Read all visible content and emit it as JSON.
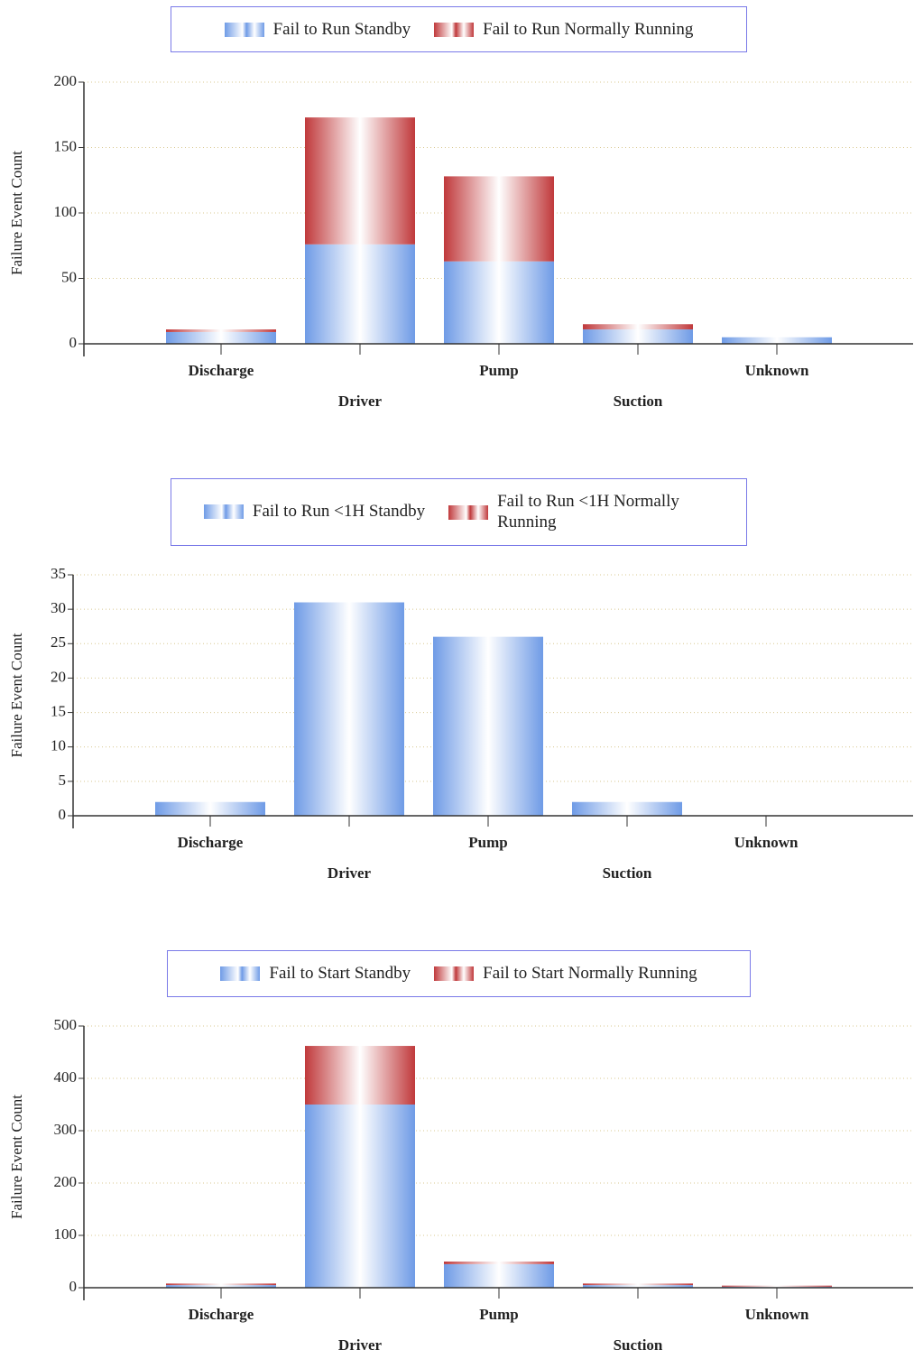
{
  "chart_data": [
    {
      "type": "bar",
      "stacked": true,
      "grid": true,
      "legend": "top",
      "y_label": "Failure Event Count",
      "categories": [
        "Discharge",
        "Driver",
        "Pump",
        "Suction",
        "Unknown"
      ],
      "series": [
        {
          "name": "Fail to Run Standby",
          "color": "#6f9be6",
          "values": [
            9,
            76,
            63,
            11,
            5
          ]
        },
        {
          "name": "Fail to Run Normally Running",
          "color": "#c0393b",
          "values": [
            2,
            97,
            65,
            4,
            0
          ]
        }
      ],
      "ylim": [
        0,
        200
      ],
      "yticks": [
        0,
        50,
        100,
        150,
        200
      ]
    },
    {
      "type": "bar",
      "stacked": true,
      "grid": true,
      "legend": "top",
      "y_label": "Failure Event Count",
      "categories": [
        "Discharge",
        "Driver",
        "Pump",
        "Suction",
        "Unknown"
      ],
      "series": [
        {
          "name": "Fail to Run <1H Standby",
          "color": "#6f9be6",
          "values": [
            2,
            31,
            26,
            2,
            0
          ]
        },
        {
          "name": "Fail to Run <1H Normally Running",
          "color": "#c0393b",
          "values": [
            0,
            0,
            0,
            0,
            0
          ]
        }
      ],
      "ylim": [
        0,
        35
      ],
      "yticks": [
        0,
        5,
        10,
        15,
        20,
        25,
        30,
        35
      ]
    },
    {
      "type": "bar",
      "stacked": true,
      "grid": true,
      "legend": "top",
      "y_label": "Failure Event Count",
      "categories": [
        "Discharge",
        "Driver",
        "Pump",
        "Suction",
        "Unknown"
      ],
      "series": [
        {
          "name": "Fail to Start Standby",
          "color": "#6f9be6",
          "values": [
            5,
            350,
            45,
            5,
            2
          ]
        },
        {
          "name": "Fail to Start Normally Running",
          "color": "#c0393b",
          "values": [
            3,
            112,
            5,
            3,
            2
          ]
        }
      ],
      "ylim": [
        0,
        500
      ],
      "yticks": [
        0,
        100,
        200,
        300,
        400,
        500
      ]
    }
  ]
}
